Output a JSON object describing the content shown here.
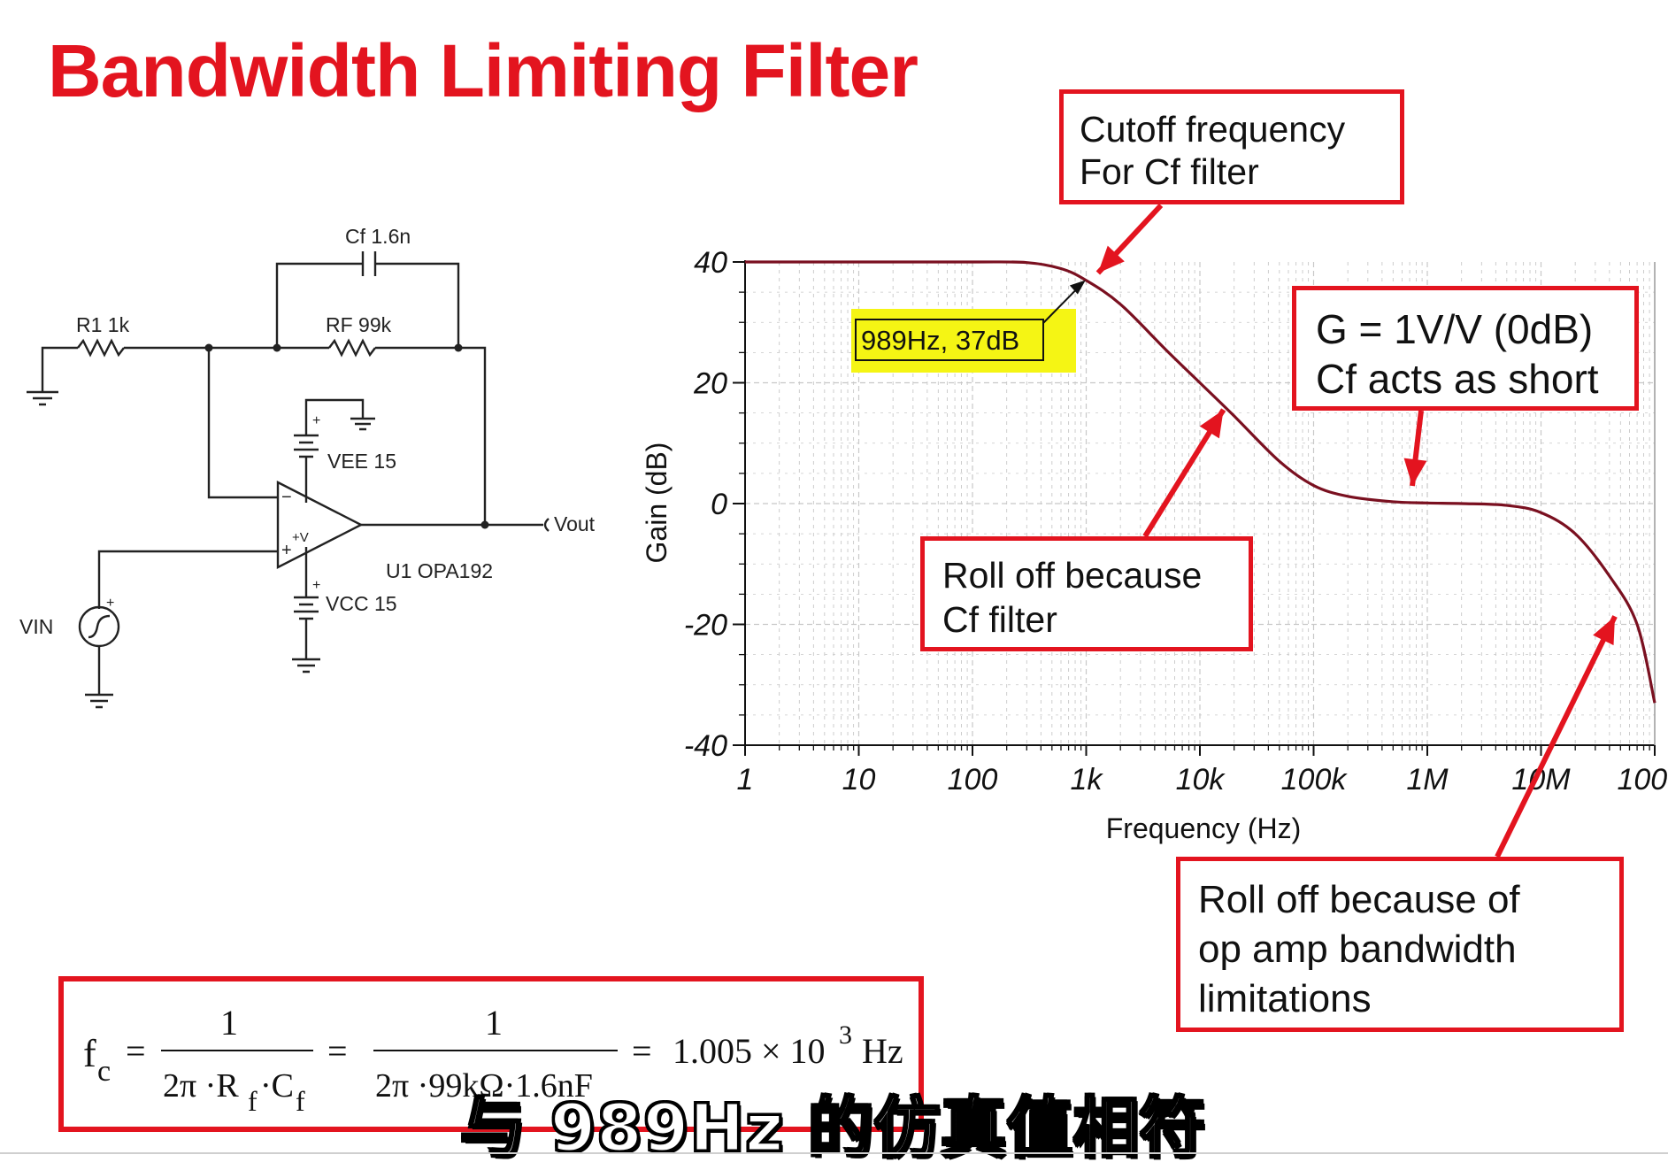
{
  "title": "Bandwidth Limiting Filter",
  "schematic": {
    "cf_label": "Cf 1.6n",
    "r1_label": "R1 1k",
    "rf_label": "RF 99k",
    "vee_label": "VEE 15",
    "vcc_label": "VCC 15",
    "opamp_label": "U1 OPA192",
    "vin_label": "VIN",
    "vout_label": "Vout",
    "minus_sign": "−",
    "plus_sign": "+",
    "pv_label": "+V"
  },
  "callouts": {
    "cutoff": [
      "Cutoff frequency",
      "For Cf filter"
    ],
    "unity": [
      "G = 1V/V (0dB)",
      "Cf acts as short"
    ],
    "rolloff_cf": [
      "Roll off because",
      "Cf filter"
    ],
    "rolloff_opamp": [
      "Roll off because of",
      "op amp bandwidth",
      "limitations"
    ]
  },
  "marker_label": "989Hz, 37dB",
  "equation": {
    "lhs_f": "f",
    "lhs_sub": "c",
    "eq1": "=",
    "num1": "1",
    "den1_a": "2π ·R",
    "den1_sub1": "f",
    "den1_b": "·C",
    "den1_sub2": "f",
    "eq2": "=",
    "num2": "1",
    "den2": "2π ·99kΩ·1.6nF",
    "eq3": "=",
    "result": "1.005 × 10",
    "exp": "3",
    "unit": "Hz"
  },
  "subtitle": "与 989Hz 的仿真值相符",
  "colors": {
    "accent_red": "#e3141f",
    "curve": "#7a1020",
    "highlight": "#f5f514",
    "grid": "#c8c8c8"
  },
  "chart_data": {
    "type": "line",
    "title": "",
    "xlabel": "Frequency (Hz)",
    "ylabel": "Gain (dB)",
    "x_scale": "log",
    "xlim": [
      1,
      100000000
    ],
    "ylim": [
      -40,
      40
    ],
    "x_tick_labels": [
      "1",
      "10",
      "100",
      "1k",
      "10k",
      "100k",
      "1M",
      "10M",
      "100M"
    ],
    "y_tick_labels": [
      "40",
      "20",
      "0",
      "-20",
      "-40"
    ],
    "grid": true,
    "series": [
      {
        "x": [
          1,
          10,
          100,
          300,
          600,
          989,
          2000,
          5000,
          10000,
          20000,
          50000,
          100000,
          200000,
          500000,
          1000000,
          2000000,
          5000000,
          10000000,
          20000000,
          40000000,
          70000000,
          100000000
        ],
        "y": [
          40,
          40,
          40,
          39.9,
          38.9,
          37,
          33,
          25.5,
          20,
          14.5,
          7,
          3,
          1.2,
          0.3,
          0.1,
          0,
          -0.3,
          -1.5,
          -5,
          -12,
          -20,
          -33
        ]
      }
    ],
    "annotations": [
      {
        "x": 989,
        "y": 37,
        "text": "989Hz, 37dB"
      }
    ]
  }
}
